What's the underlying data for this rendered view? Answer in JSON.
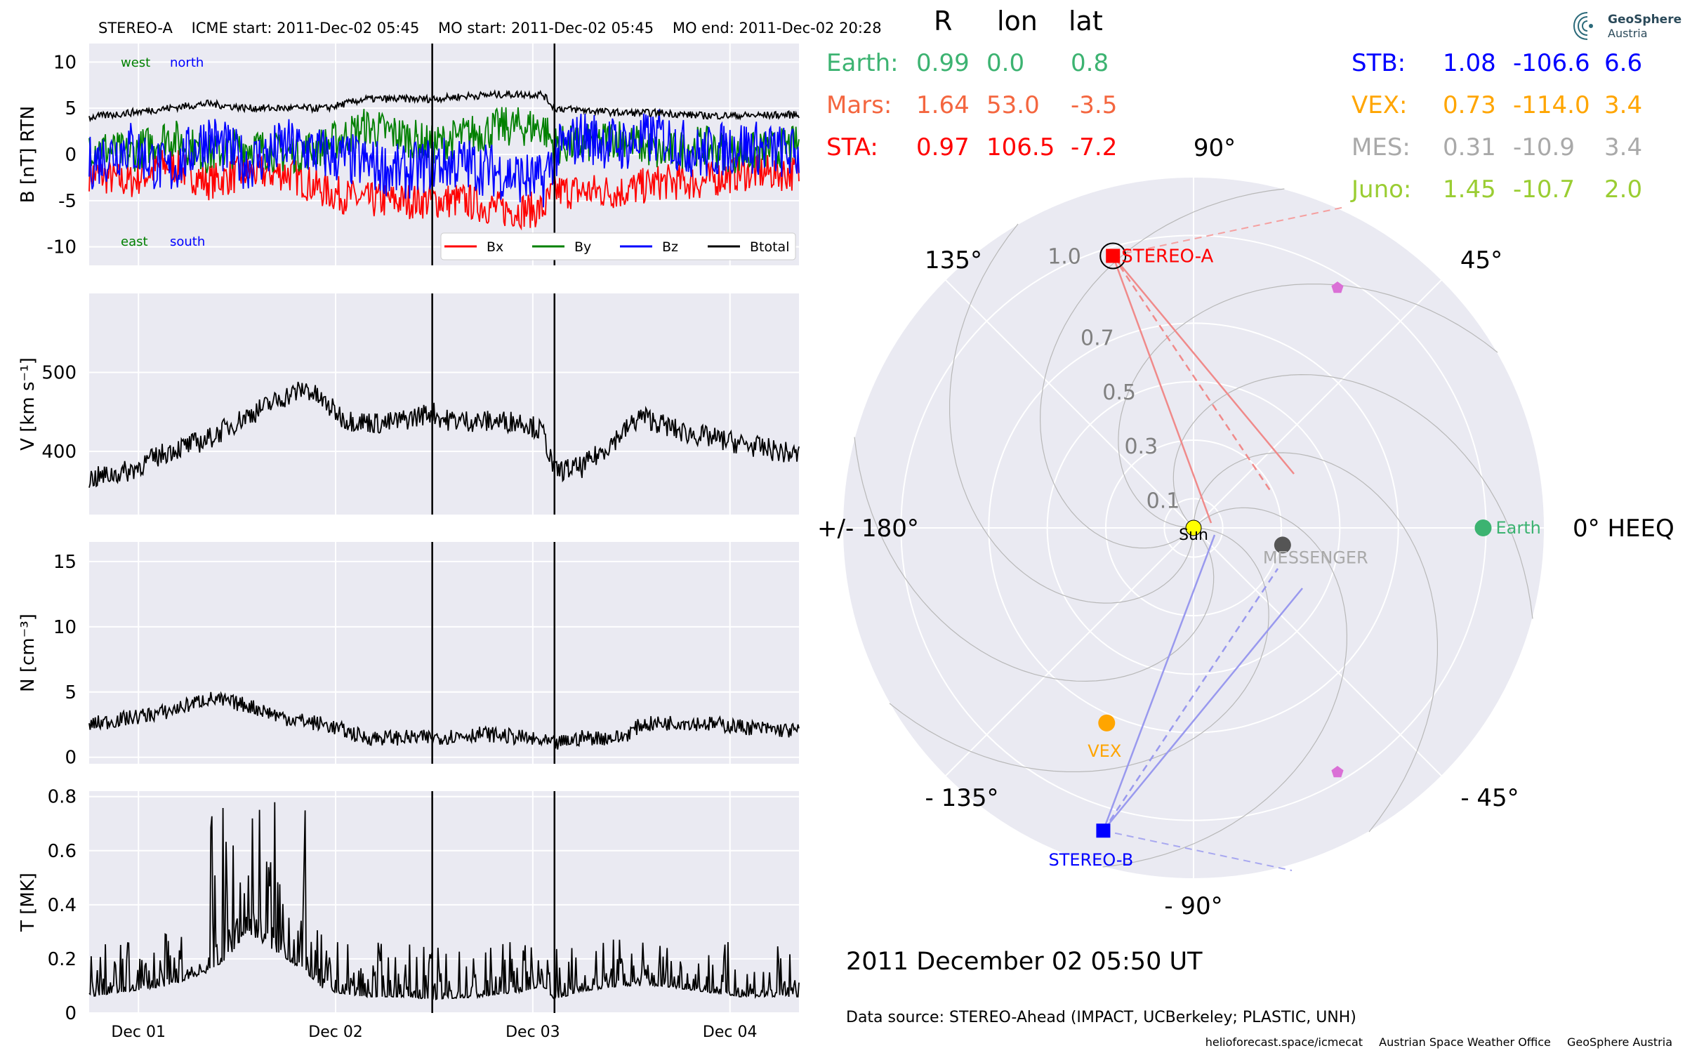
{
  "header": {
    "spacecraft": "STEREO-A",
    "icme_start": "ICME start: 2011-Dec-02 05:45",
    "mo_start": "MO start: 2011-Dec-02 05:45",
    "mo_end": "MO end: 2011-Dec-02 20:28"
  },
  "logo": {
    "line1": "GeoSphere",
    "line2": "Austria"
  },
  "position_table": {
    "columns": [
      "R",
      "lon",
      "lat"
    ],
    "left_rows": [
      {
        "name": "Earth:",
        "R": "0.99",
        "lon": "0.0",
        "lat": "0.8",
        "color": "#3cb371"
      },
      {
        "name": "Mars:",
        "R": "1.64",
        "lon": "53.0",
        "lat": "-3.5",
        "color": "#f4663f"
      },
      {
        "name": "STA:",
        "R": "0.97",
        "lon": "106.5",
        "lat": "-7.2",
        "color": "#ff0000"
      }
    ],
    "right_rows": [
      {
        "name": "STB:",
        "R": "1.08",
        "lon": "-106.6",
        "lat": "6.6",
        "color": "#0000ff"
      },
      {
        "name": "VEX:",
        "R": "0.73",
        "lon": "-114.0",
        "lat": "3.4",
        "color": "#ffa500"
      },
      {
        "name": "MES:",
        "R": "0.31",
        "lon": "-10.9",
        "lat": "3.4",
        "color": "#a9a9a9"
      },
      {
        "name": "Juno:",
        "R": "1.45",
        "lon": "-10.7",
        "lat": "2.0",
        "color": "#9acd32"
      }
    ]
  },
  "polar": {
    "angle_labels": [
      "90°",
      "45°",
      "0° HEEQ",
      "- 45°",
      "- 90°",
      "- 135°",
      "+/- 180°",
      "135°"
    ],
    "radial_labels": [
      "0.1",
      "0.3",
      "0.5",
      "0.7",
      "1.0"
    ],
    "objects": [
      {
        "name": "Sun",
        "r": 0.0,
        "lon": 0.0,
        "color": "#ffff00"
      },
      {
        "name": "Earth",
        "r": 0.99,
        "lon": 0.0,
        "color": "#3cb371"
      },
      {
        "name": "STEREO-A",
        "r": 0.97,
        "lon": 106.5,
        "color": "#ff0000"
      },
      {
        "name": "STEREO-B",
        "r": 1.08,
        "lon": -106.6,
        "color": "#0000ff"
      },
      {
        "name": "VEX",
        "r": 0.73,
        "lon": -114.0,
        "color": "#ffa500"
      },
      {
        "name": "MESSENGER",
        "r": 0.31,
        "lon": -10.9,
        "color": "#a9a9a9"
      }
    ]
  },
  "date_text": "2011 December 02  05:50 UT",
  "source_text": "Data source: STEREO-Ahead (IMPACT, UCBerkeley; PLASTIC, UNH)",
  "footer": [
    "helioforecast.space/icmecat",
    "Austrian Space Weather Office",
    "GeoSphere Austria"
  ],
  "chart_data": [
    {
      "type": "line",
      "panel": "magnetic field",
      "ylabel": "B [nT] RTN",
      "ylim": [
        -12,
        12
      ],
      "yticks": [
        10,
        5,
        0,
        -5,
        -10
      ],
      "annotations": [
        "west",
        "north",
        "east",
        "south"
      ],
      "xlim": [
        0.0,
        3.6
      ],
      "xticks": [
        {
          "x": 0.25,
          "label": "Dec 01"
        },
        {
          "x": 1.25,
          "label": "Dec 02"
        },
        {
          "x": 2.25,
          "label": "Dec 03"
        },
        {
          "x": 3.25,
          "label": "Dec 04"
        }
      ],
      "vlines": [
        1.74,
        2.36
      ],
      "legend": "lower-right",
      "series": [
        {
          "name": "Bx",
          "color": "#ff0000",
          "x": [
            0.0,
            0.2,
            0.4,
            0.6,
            0.8,
            1.0,
            1.2,
            1.4,
            1.6,
            1.74,
            1.9,
            2.1,
            2.3,
            2.36,
            2.5,
            2.7,
            2.9,
            3.1,
            3.3,
            3.6
          ],
          "y": [
            -2,
            -3,
            -1,
            -3,
            -2,
            -2,
            -4,
            -5,
            -5,
            -5,
            -5,
            -6,
            -6,
            -4,
            -4,
            -4,
            -3,
            -3,
            -2,
            -2
          ]
        },
        {
          "name": "By",
          "color": "#008000",
          "x": [
            0.0,
            0.2,
            0.4,
            0.6,
            0.8,
            1.0,
            1.2,
            1.4,
            1.6,
            1.74,
            1.9,
            2.1,
            2.3,
            2.36,
            2.5,
            2.7,
            2.9,
            3.1,
            3.3,
            3.6
          ],
          "y": [
            1,
            0,
            2,
            0,
            1,
            0,
            1,
            3,
            2,
            1,
            2,
            3,
            3,
            1,
            1,
            2,
            0,
            1,
            0,
            1
          ]
        },
        {
          "name": "Bz",
          "color": "#0000ff",
          "x": [
            0.0,
            0.2,
            0.4,
            0.6,
            0.8,
            1.0,
            1.2,
            1.4,
            1.6,
            1.74,
            1.9,
            2.1,
            2.3,
            2.36,
            2.5,
            2.7,
            2.9,
            3.1,
            3.3,
            3.6
          ],
          "y": [
            -1,
            1,
            -2,
            2,
            -1,
            1,
            0,
            -1,
            -2,
            -1,
            -1,
            -2,
            -3,
            0,
            2,
            1,
            2,
            0,
            1,
            0
          ]
        },
        {
          "name": "Btotal",
          "color": "#000000",
          "x": [
            0.0,
            0.2,
            0.4,
            0.6,
            0.8,
            1.0,
            1.2,
            1.4,
            1.6,
            1.74,
            1.9,
            2.1,
            2.3,
            2.36,
            2.5,
            2.7,
            2.9,
            3.1,
            3.3,
            3.6
          ],
          "y": [
            4,
            4.5,
            5,
            5.5,
            5,
            5,
            5,
            6,
            6,
            6,
            6.3,
            6.5,
            6.5,
            5,
            4.8,
            4.5,
            4.5,
            4.2,
            4.2,
            4.3
          ]
        }
      ]
    },
    {
      "type": "line",
      "panel": "speed",
      "ylabel": "V [km s⁻¹]",
      "ylim": [
        320,
        600
      ],
      "yticks": [
        500,
        400
      ],
      "xlim": [
        0.0,
        3.6
      ],
      "vlines": [
        1.74,
        2.36
      ],
      "series": [
        {
          "name": "V",
          "color": "#000000",
          "x": [
            0.0,
            0.2,
            0.4,
            0.6,
            0.8,
            1.0,
            1.1,
            1.3,
            1.5,
            1.6,
            1.74,
            1.8,
            2.0,
            2.2,
            2.3,
            2.36,
            2.5,
            2.6,
            2.8,
            3.0,
            3.2,
            3.4,
            3.6
          ],
          "y": [
            365,
            375,
            400,
            415,
            445,
            470,
            480,
            440,
            435,
            440,
            450,
            440,
            438,
            438,
            425,
            375,
            380,
            400,
            445,
            425,
            415,
            405,
            395
          ]
        }
      ]
    },
    {
      "type": "line",
      "panel": "density",
      "ylabel": "N [cm⁻³]",
      "ylim": [
        -0.5,
        16.5
      ],
      "yticks": [
        15,
        10,
        5,
        0
      ],
      "xlim": [
        0.0,
        3.6
      ],
      "vlines": [
        1.74,
        2.36
      ],
      "series": [
        {
          "name": "N",
          "color": "#000000",
          "x": [
            0.0,
            0.2,
            0.4,
            0.6,
            0.8,
            1.0,
            1.2,
            1.4,
            1.6,
            1.74,
            2.0,
            2.2,
            2.36,
            2.5,
            2.7,
            2.8,
            3.0,
            3.2,
            3.4,
            3.6
          ],
          "y": [
            2.5,
            3,
            3.5,
            4.5,
            4,
            3,
            2.5,
            1.5,
            1.5,
            1.5,
            1.8,
            1.5,
            1.0,
            1.5,
            1.5,
            2.5,
            2.7,
            2.5,
            2.2,
            2.0
          ]
        }
      ]
    },
    {
      "type": "line",
      "panel": "temperature",
      "ylabel": "T [MK]",
      "ylim": [
        0.0,
        0.82
      ],
      "yticks": [
        0.8,
        0.6,
        0.4,
        0.2,
        0.0
      ],
      "xlim": [
        0.0,
        3.6
      ],
      "vlines": [
        1.74,
        2.36
      ],
      "series": [
        {
          "name": "T",
          "color": "#000000",
          "x": [
            0.0,
            0.2,
            0.4,
            0.6,
            0.7,
            0.8,
            0.9,
            1.0,
            1.1,
            1.2,
            1.4,
            1.6,
            1.74,
            2.0,
            2.2,
            2.3,
            2.36,
            2.5,
            2.7,
            2.9,
            3.1,
            3.3,
            3.6
          ],
          "y": [
            0.06,
            0.08,
            0.1,
            0.15,
            0.2,
            0.3,
            0.25,
            0.2,
            0.15,
            0.08,
            0.06,
            0.06,
            0.05,
            0.06,
            0.08,
            0.1,
            0.05,
            0.08,
            0.1,
            0.1,
            0.08,
            0.06,
            0.06
          ]
        }
      ]
    }
  ]
}
